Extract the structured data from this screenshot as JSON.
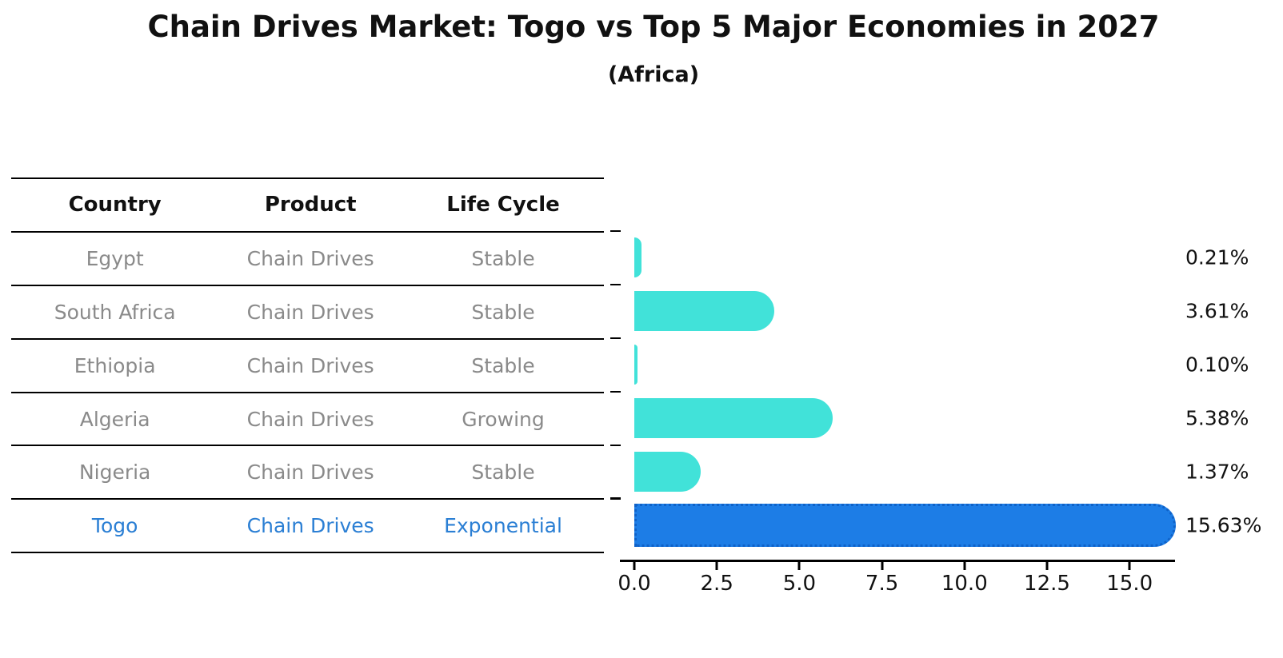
{
  "title": "Chain Drives Market: Togo vs Top 5 Major Economies in 2027",
  "subtitle": "(Africa)",
  "colors": {
    "bar": "#41e2d9",
    "highlight_bar": "#1d7de6",
    "highlight_edge": "#0f62c8",
    "highlight_text": "#2b7fd4",
    "table_text": "#8a8a8a",
    "header_text": "#111111",
    "axis": "#000000"
  },
  "table": {
    "headers": [
      "Country",
      "Product",
      "Life Cycle"
    ],
    "rows": [
      {
        "country": "Egypt",
        "product": "Chain Drives",
        "life_cycle": "Stable",
        "highlight": false
      },
      {
        "country": "South Africa",
        "product": "Chain Drives",
        "life_cycle": "Stable",
        "highlight": false
      },
      {
        "country": "Ethiopia",
        "product": "Chain Drives",
        "life_cycle": "Stable",
        "highlight": false
      },
      {
        "country": "Algeria",
        "product": "Chain Drives",
        "life_cycle": "Growing",
        "highlight": false
      },
      {
        "country": "Nigeria",
        "product": "Chain Drives",
        "life_cycle": "Stable",
        "highlight": false
      },
      {
        "country": "Togo",
        "product": "Chain Drives",
        "life_cycle": "Exponential",
        "highlight": true
      }
    ]
  },
  "chart_data": {
    "type": "bar",
    "orientation": "horizontal",
    "title": "Chain Drives Market: Togo vs Top 5 Major Economies in 2027",
    "subtitle": "(Africa)",
    "categories": [
      "Egypt",
      "South Africa",
      "Ethiopia",
      "Algeria",
      "Nigeria",
      "Togo"
    ],
    "values": [
      0.21,
      3.61,
      0.1,
      5.38,
      1.37,
      15.63
    ],
    "value_labels": [
      "0.21%",
      "3.61%",
      "0.10%",
      "5.38%",
      "1.37%",
      "15.63%"
    ],
    "unit": "%",
    "xticks": [
      0.0,
      2.5,
      5.0,
      7.5,
      10.0,
      12.5,
      15.0
    ],
    "xtick_labels": [
      "0.0",
      "2.5",
      "5.0",
      "7.5",
      "10.0",
      "12.5",
      "15.0"
    ],
    "xlim": [
      0,
      16.3
    ],
    "highlight_index": 5,
    "grid": false,
    "legend": false
  }
}
